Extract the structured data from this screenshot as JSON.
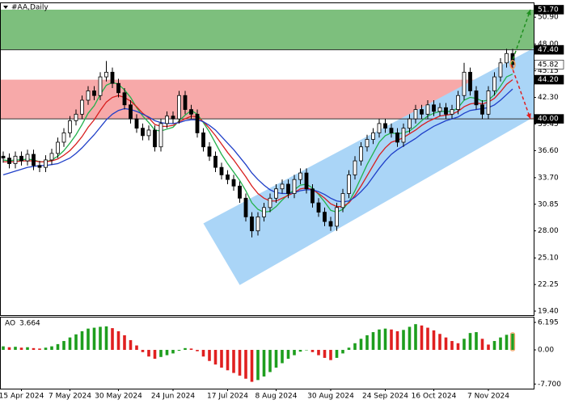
{
  "chart_data": {
    "type": "candlestick",
    "title": "#AA,Daily",
    "categories": [
      null,
      null,
      null,
      "15 Apr 2024",
      null,
      null,
      null,
      null,
      null,
      null,
      null,
      "7 May 2024",
      null,
      null,
      null,
      null,
      null,
      null,
      null,
      "30 May 2024",
      null,
      null,
      null,
      null,
      null,
      null,
      null,
      null,
      "24 Jun 2024",
      null,
      null,
      null,
      null,
      null,
      null,
      null,
      null,
      "17 Jul 2024",
      null,
      null,
      null,
      null,
      null,
      null,
      null,
      "8 Aug 2024",
      null,
      null,
      null,
      null,
      null,
      null,
      null,
      null,
      "30 Aug 2024",
      null,
      null,
      null,
      null,
      null,
      null,
      null,
      null,
      "24 Sep 2024",
      null,
      null,
      null,
      null,
      null,
      null,
      null,
      "16 Oct 2024",
      null,
      null,
      null,
      null,
      null,
      null,
      null,
      null,
      "7 Nov 2024",
      null,
      null,
      null,
      null
    ],
    "open": [
      36.0,
      35.8,
      35.2,
      36.0,
      35.5,
      36.2,
      35.0,
      34.8,
      35.6,
      36.3,
      37.5,
      38.5,
      39.8,
      40.5,
      42.0,
      43.0,
      42.5,
      44.5,
      45.0,
      43.8,
      42.8,
      41.5,
      40.0,
      39.0,
      38.2,
      38.8,
      37.0,
      39.5,
      40.3,
      40.0,
      42.5,
      41.0,
      40.5,
      38.5,
      37.0,
      36.0,
      34.8,
      34.0,
      33.5,
      32.8,
      31.5,
      29.5,
      28.0,
      29.5,
      30.5,
      31.5,
      32.5,
      33.0,
      32.0,
      33.5,
      34.2,
      32.5,
      31.0,
      30.0,
      29.0,
      28.5,
      30.5,
      32.0,
      34.0,
      35.5,
      37.0,
      37.8,
      38.5,
      39.5,
      39.0,
      38.5,
      37.5,
      39.0,
      40.0,
      41.0,
      40.5,
      41.5,
      40.8,
      41.2,
      40.5,
      41.0,
      42.5,
      45.0,
      43.0,
      41.5,
      40.5,
      43.0,
      44.5,
      46.0,
      47.0
    ],
    "high": [
      36.5,
      36.3,
      36.5,
      36.5,
      36.7,
      36.7,
      35.5,
      36.1,
      36.8,
      38.0,
      39.0,
      40.3,
      41.0,
      42.5,
      43.5,
      43.5,
      45.0,
      46.2,
      45.5,
      44.3,
      43.3,
      42.0,
      40.5,
      39.5,
      39.3,
      39.3,
      40.0,
      40.8,
      40.8,
      43.0,
      43.0,
      41.5,
      41.0,
      39.0,
      37.5,
      36.5,
      35.3,
      34.5,
      34.0,
      33.3,
      32.0,
      30.0,
      30.0,
      31.0,
      32.0,
      33.0,
      33.5,
      33.5,
      34.0,
      34.7,
      34.7,
      33.0,
      31.5,
      30.5,
      29.5,
      31.0,
      32.5,
      34.5,
      36.0,
      37.5,
      38.3,
      39.0,
      40.0,
      40.0,
      39.5,
      39.0,
      39.5,
      40.5,
      41.5,
      41.5,
      42.0,
      42.0,
      41.7,
      41.7,
      41.5,
      43.0,
      46.0,
      45.5,
      43.5,
      42.0,
      43.5,
      45.0,
      46.5,
      47.5,
      47.5
    ],
    "low": [
      35.3,
      34.7,
      34.7,
      35.0,
      35.0,
      34.5,
      34.3,
      34.3,
      35.1,
      35.8,
      37.0,
      38.0,
      39.3,
      40.0,
      41.5,
      42.0,
      42.0,
      44.0,
      43.3,
      42.3,
      41.0,
      39.5,
      38.5,
      37.7,
      37.7,
      36.5,
      36.5,
      39.0,
      39.5,
      39.5,
      40.5,
      40.0,
      38.0,
      36.5,
      35.5,
      34.3,
      33.5,
      33.0,
      32.3,
      31.0,
      29.0,
      27.3,
      27.5,
      29.0,
      30.0,
      31.0,
      32.0,
      31.5,
      31.5,
      33.0,
      32.0,
      30.5,
      29.5,
      28.5,
      28.0,
      28.0,
      30.0,
      31.5,
      33.5,
      35.0,
      36.5,
      37.3,
      38.0,
      38.5,
      38.0,
      37.0,
      37.0,
      38.5,
      39.5,
      40.0,
      40.0,
      40.3,
      40.3,
      40.0,
      40.0,
      40.5,
      42.0,
      42.5,
      41.0,
      40.0,
      40.0,
      42.5,
      44.0,
      45.5,
      45.3
    ],
    "close": [
      35.8,
      35.2,
      36.0,
      35.5,
      36.2,
      35.0,
      34.8,
      35.6,
      36.3,
      37.5,
      38.5,
      39.8,
      40.5,
      42.0,
      43.0,
      42.5,
      44.5,
      45.0,
      43.8,
      42.8,
      41.5,
      40.0,
      39.0,
      38.2,
      38.8,
      37.0,
      39.5,
      40.3,
      40.0,
      42.5,
      41.0,
      40.5,
      38.5,
      37.0,
      36.0,
      34.8,
      34.0,
      33.5,
      32.8,
      31.5,
      29.5,
      28.0,
      29.5,
      30.5,
      31.5,
      32.5,
      33.0,
      32.0,
      33.5,
      34.2,
      32.5,
      31.0,
      30.0,
      29.0,
      28.5,
      30.5,
      32.0,
      34.0,
      35.5,
      37.0,
      37.8,
      38.5,
      39.5,
      39.0,
      38.5,
      37.5,
      39.0,
      40.0,
      41.0,
      40.5,
      41.5,
      40.8,
      41.2,
      40.5,
      41.0,
      42.5,
      45.0,
      43.0,
      41.5,
      40.5,
      43.0,
      44.5,
      46.0,
      47.0,
      45.82
    ],
    "up_color": "#ffffff",
    "down_color": "#000000",
    "wick_color": "#000000",
    "series": [
      {
        "color": "#22b14c",
        "values": [
          35.6,
          35.5,
          35.6,
          35.6,
          35.7,
          35.6,
          35.4,
          35.4,
          35.6,
          36.0,
          36.6,
          37.4,
          38.3,
          39.4,
          40.6,
          41.4,
          42.6,
          43.6,
          43.9,
          43.7,
          43.1,
          42.3,
          41.2,
          40.3,
          39.6,
          38.8,
          38.7,
          38.9,
          39.1,
          39.8,
          40.4,
          40.9,
          40.5,
          39.6,
          38.6,
          37.4,
          36.2,
          35.2,
          34.3,
          33.4,
          32.3,
          31.0,
          30.3,
          30.0,
          30.1,
          30.6,
          31.3,
          31.9,
          32.4,
          32.9,
          33.0,
          32.6,
          31.9,
          31.1,
          30.2,
          30.0,
          30.3,
          31.1,
          32.3,
          33.7,
          35.1,
          36.3,
          37.5,
          38.2,
          38.5,
          38.4,
          38.5,
          38.7,
          39.2,
          39.8,
          40.3,
          40.6,
          40.8,
          40.8,
          40.8,
          41.2,
          42.0,
          42.3,
          42.2,
          41.9,
          42.0,
          42.6,
          43.5,
          44.5,
          44.8
        ]
      },
      {
        "color": "#d81e1e",
        "values": [
          35.4,
          35.4,
          35.4,
          35.5,
          35.5,
          35.5,
          35.4,
          35.4,
          35.5,
          35.7,
          36.1,
          36.6,
          37.3,
          38.1,
          39.1,
          39.9,
          40.9,
          41.8,
          42.3,
          42.5,
          42.3,
          41.9,
          41.3,
          40.6,
          40.1,
          39.4,
          39.2,
          39.2,
          39.3,
          39.7,
          40.0,
          40.3,
          40.2,
          39.7,
          39.0,
          38.2,
          37.3,
          36.4,
          35.6,
          34.7,
          33.8,
          32.8,
          32.0,
          31.5,
          31.2,
          31.2,
          31.5,
          31.8,
          32.1,
          32.5,
          32.6,
          32.4,
          32.0,
          31.5,
          30.9,
          30.6,
          30.6,
          31.0,
          31.8,
          32.8,
          33.9,
          35.0,
          36.1,
          36.9,
          37.5,
          37.7,
          38.0,
          38.4,
          38.8,
          39.3,
          39.7,
          40.0,
          40.3,
          40.4,
          40.5,
          40.8,
          41.3,
          41.6,
          41.7,
          41.6,
          41.8,
          42.2,
          42.9,
          43.7,
          44.2
        ]
      },
      {
        "color": "#1f3fc8",
        "values": [
          34.0,
          34.2,
          34.4,
          34.6,
          34.8,
          34.9,
          35.0,
          35.0,
          35.1,
          35.2,
          35.5,
          35.8,
          36.3,
          36.9,
          37.6,
          38.3,
          39.1,
          39.9,
          40.5,
          40.9,
          41.1,
          41.0,
          40.8,
          40.5,
          40.2,
          39.8,
          39.6,
          39.5,
          39.5,
          39.6,
          39.8,
          39.9,
          39.9,
          39.7,
          39.3,
          38.8,
          38.1,
          37.4,
          36.7,
          35.9,
          35.1,
          34.2,
          33.5,
          32.9,
          32.4,
          32.1,
          32.0,
          32.0,
          32.1,
          32.3,
          32.4,
          32.4,
          32.2,
          31.9,
          31.5,
          31.2,
          31.1,
          31.2,
          31.6,
          32.2,
          32.9,
          33.8,
          34.7,
          35.5,
          36.2,
          36.7,
          37.1,
          37.5,
          37.9,
          38.4,
          38.8,
          39.2,
          39.5,
          39.8,
          40.0,
          40.2,
          40.6,
          40.9,
          41.0,
          41.1,
          41.2,
          41.5,
          42.0,
          42.6,
          43.2
        ]
      }
    ],
    "ylim": [
      18.97,
      52.39
    ],
    "yticks": [
      {
        "value": 50.9,
        "label": "50.90"
      },
      {
        "value": 48.0,
        "label": "48.00"
      },
      {
        "value": 45.15,
        "label": "45.15"
      },
      {
        "value": 42.3,
        "label": "42.30"
      },
      {
        "value": 39.45,
        "label": "39.45"
      },
      {
        "value": 36.6,
        "label": "36.60"
      },
      {
        "value": 33.7,
        "label": "33.70"
      },
      {
        "value": 30.85,
        "label": "30.85"
      },
      {
        "value": 28.0,
        "label": "28.00"
      },
      {
        "value": 25.1,
        "label": "25.10"
      },
      {
        "value": 22.25,
        "label": "22.25"
      },
      {
        "value": 19.4,
        "label": "19.40"
      }
    ],
    "levels": [
      {
        "value": 51.7,
        "label": "51.70",
        "color": "#000000"
      },
      {
        "value": 47.4,
        "label": "47.40",
        "color": "#000000"
      },
      {
        "value": 45.82,
        "label": "45.82",
        "color": "#ffffff"
      },
      {
        "value": 44.2,
        "label": "44.20",
        "color": "#000000"
      },
      {
        "value": 40.0,
        "label": "40.00",
        "color": "#000000"
      }
    ],
    "zones": [
      {
        "from": 47.4,
        "to": 51.7,
        "color": "#7dbf7d"
      },
      {
        "from": 40.0,
        "to": 44.2,
        "color": "#f7a9a9"
      }
    ],
    "channel": {
      "x": [
        33,
        87.5,
        87.5,
        39
      ],
      "y": [
        28.8,
        47.6,
        40.2,
        22.2
      ],
      "color": "#aad5f7"
    },
    "ao": {
      "name": "AO",
      "up_color": "#1e9e1e",
      "down_color": "#e02020",
      "values": [
        0.8,
        0.6,
        0.7,
        0.5,
        0.6,
        0.4,
        0.3,
        0.5,
        0.8,
        1.3,
        2.0,
        2.8,
        3.5,
        4.2,
        4.8,
        5.0,
        5.2,
        5.3,
        4.9,
        4.2,
        3.3,
        2.2,
        1.0,
        -0.5,
        -1.5,
        -2.0,
        -1.6,
        -1.2,
        -0.8,
        -0.2,
        0.4,
        0.3,
        -0.3,
        -1.5,
        -2.5,
        -3.3,
        -4.0,
        -4.6,
        -5.2,
        -5.8,
        -6.5,
        -7.2,
        -6.8,
        -6.0,
        -5.0,
        -4.0,
        -3.0,
        -2.0,
        -1.2,
        -0.4,
        0.0,
        -0.5,
        -1.2,
        -1.8,
        -2.3,
        -1.8,
        -0.8,
        0.5,
        1.5,
        2.5,
        3.3,
        4.0,
        4.6,
        4.8,
        4.6,
        4.2,
        4.5,
        5.2,
        5.8,
        5.5,
        5.0,
        4.4,
        3.6,
        2.8,
        2.0,
        1.5,
        2.5,
        3.8,
        4.0,
        2.5,
        1.2,
        2.0,
        2.8,
        3.4,
        3.664
      ],
      "ylim": [
        -8.74,
        7.29
      ],
      "yticks": [
        {
          "value": 6.195,
          "label": "6.195"
        },
        {
          "value": 0,
          "label": "0.00"
        },
        {
          "value": -7.7,
          "label": "-7.700"
        }
      ]
    }
  }
}
